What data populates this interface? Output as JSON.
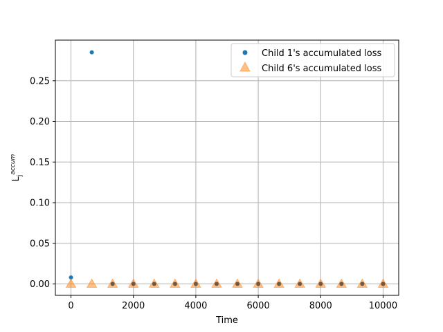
{
  "chart_data": {
    "type": "scatter",
    "xlabel": "Time",
    "ylabel": "L_j^accum",
    "xlim": [
      -500,
      10500
    ],
    "ylim": [
      -0.014,
      0.3
    ],
    "x_ticks": [
      0,
      2000,
      4000,
      6000,
      8000,
      10000
    ],
    "x_tick_labels": [
      "0",
      "2000",
      "4000",
      "6000",
      "8000",
      "10000"
    ],
    "y_ticks": [
      0.0,
      0.05,
      0.1,
      0.15,
      0.2,
      0.25
    ],
    "y_tick_labels": [
      "0.00",
      "0.05",
      "0.10",
      "0.15",
      "0.20",
      "0.25"
    ],
    "grid": true,
    "legend_position": "top-right",
    "series": [
      {
        "name": "Child 1's accumulated loss",
        "marker": "circle",
        "color": "#1f77b4",
        "x": [
          0,
          667,
          1333,
          2000,
          2667,
          3333,
          4000,
          4667,
          5333,
          6000,
          6667,
          7333,
          8000,
          8667,
          9333,
          10000
        ],
        "y": [
          0.008,
          0.285,
          0,
          0,
          0,
          0,
          0,
          0,
          0,
          0,
          0,
          0,
          0,
          0,
          0,
          0
        ]
      },
      {
        "name": "Child 6's accumulated loss",
        "marker": "triangle",
        "color": "#ff7f0e",
        "x": [
          0,
          667,
          1333,
          2000,
          2667,
          3333,
          4000,
          4667,
          5333,
          6000,
          6667,
          7333,
          8000,
          8667,
          9333,
          10000
        ],
        "y": [
          0,
          0,
          0,
          0,
          0,
          0,
          0,
          0,
          0,
          0,
          0,
          0,
          0,
          0,
          0,
          0
        ]
      }
    ]
  }
}
